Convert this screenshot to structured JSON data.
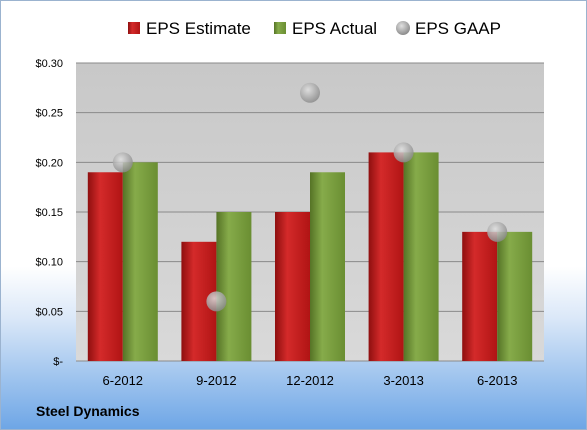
{
  "company": "Steel Dynamics",
  "chart_data": {
    "type": "bar",
    "categories": [
      "6-2012",
      "9-2012",
      "12-2012",
      "3-2013",
      "6-2013"
    ],
    "series": [
      {
        "name": "EPS Estimate",
        "values": [
          0.19,
          0.12,
          0.15,
          0.21,
          0.13
        ],
        "color": "#c00000"
      },
      {
        "name": "EPS Actual",
        "values": [
          0.2,
          0.15,
          0.19,
          0.21,
          0.13
        ],
        "color": "#6f9431"
      }
    ],
    "scatter_series": {
      "name": "EPS GAAP",
      "values": [
        0.2,
        0.06,
        0.27,
        0.21,
        0.13
      ],
      "color": "#a6a6a6"
    },
    "ylim": [
      0,
      0.3
    ],
    "yticks": [
      0,
      0.05,
      0.1,
      0.15,
      0.2,
      0.25,
      0.3
    ],
    "ytick_labels": [
      "$-",
      "$0.05",
      "$0.10",
      "$0.15",
      "$0.20",
      "$0.25",
      "$0.30"
    ],
    "legend_position": "top",
    "grid": true,
    "plot_background": "#c8c8c8"
  }
}
